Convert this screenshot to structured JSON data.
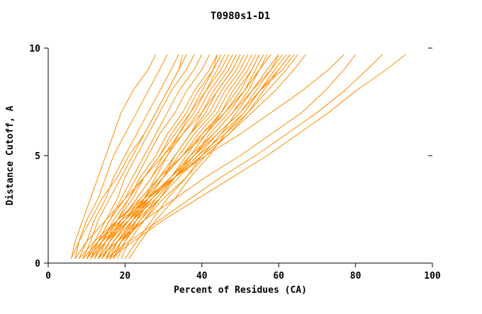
{
  "chart_data": {
    "type": "line",
    "title": "T0980s1-D1",
    "xlabel": "Percent of Residues (CA)",
    "ylabel": "Distance Cutoff, A",
    "xlim": [
      0,
      100
    ],
    "ylim": [
      0,
      10
    ],
    "x_ticks": [
      0,
      20,
      40,
      60,
      80,
      100
    ],
    "y_ticks": [
      0,
      5,
      10
    ],
    "grid": false,
    "legend_position": "none",
    "line_color": "#ff8c00",
    "y_levels": [
      0.2,
      1,
      2,
      3,
      4,
      5,
      6,
      7,
      8,
      9,
      9.7
    ],
    "series": [
      [
        6,
        7,
        9,
        11,
        13,
        15,
        17,
        19,
        22,
        26,
        28
      ],
      [
        7,
        8,
        10,
        13,
        15,
        17,
        20,
        23,
        26,
        29,
        31
      ],
      [
        8,
        10,
        12,
        15,
        17,
        20,
        23,
        26,
        29,
        32,
        34
      ],
      [
        9,
        11,
        13,
        16,
        19,
        22,
        25,
        28,
        31,
        34,
        36
      ],
      [
        10,
        12,
        15,
        18,
        20,
        23,
        26,
        29,
        32,
        36,
        38
      ],
      [
        10,
        13,
        16,
        19,
        22,
        25,
        28,
        31,
        34,
        38,
        40
      ],
      [
        11,
        13,
        16,
        20,
        23,
        26,
        29,
        33,
        36,
        40,
        42
      ],
      [
        11,
        14,
        17,
        21,
        24,
        28,
        31,
        35,
        38,
        42,
        44
      ],
      [
        12,
        15,
        18,
        22,
        25,
        29,
        32,
        36,
        39,
        43,
        45
      ],
      [
        12,
        14,
        18,
        21,
        25,
        29,
        33,
        37,
        41,
        44,
        46
      ],
      [
        13,
        16,
        19,
        23,
        27,
        30,
        34,
        38,
        41,
        45,
        47
      ],
      [
        13,
        15,
        19,
        23,
        27,
        31,
        35,
        39,
        42,
        46,
        48
      ],
      [
        14,
        17,
        21,
        25,
        29,
        33,
        37,
        41,
        44,
        48,
        50
      ],
      [
        14,
        16,
        20,
        24,
        29,
        33,
        37,
        42,
        45,
        49,
        51
      ],
      [
        15,
        18,
        22,
        26,
        30,
        34,
        38,
        43,
        46,
        50,
        52
      ],
      [
        15,
        17,
        21,
        26,
        30,
        35,
        39,
        44,
        47,
        51,
        53
      ],
      [
        16,
        19,
        23,
        27,
        32,
        36,
        40,
        45,
        48,
        52,
        54
      ],
      [
        16,
        18,
        22,
        27,
        32,
        37,
        41,
        46,
        50,
        53,
        55
      ],
      [
        17,
        20,
        24,
        29,
        33,
        38,
        42,
        47,
        51,
        54,
        56
      ],
      [
        17,
        19,
        24,
        28,
        33,
        38,
        43,
        48,
        52,
        55,
        57
      ],
      [
        12,
        15,
        20,
        25,
        30,
        35,
        41,
        46,
        51,
        55,
        58
      ],
      [
        13,
        16,
        21,
        26,
        32,
        37,
        43,
        48,
        53,
        57,
        60
      ],
      [
        14,
        17,
        22,
        28,
        33,
        39,
        44,
        50,
        54,
        58,
        61
      ],
      [
        15,
        18,
        23,
        29,
        34,
        40,
        45,
        51,
        55,
        59,
        62
      ],
      [
        16,
        19,
        25,
        30,
        36,
        41,
        47,
        52,
        56,
        60,
        63
      ],
      [
        10,
        14,
        20,
        26,
        32,
        38,
        44,
        50,
        55,
        61,
        64
      ],
      [
        11,
        15,
        21,
        27,
        33,
        39,
        46,
        52,
        57,
        62,
        65
      ],
      [
        9,
        13,
        19,
        26,
        33,
        40,
        47,
        53,
        59,
        64,
        67
      ],
      [
        8,
        12,
        18,
        25,
        33,
        41,
        50,
        58,
        66,
        73,
        77
      ],
      [
        13,
        18,
        25,
        33,
        41,
        50,
        58,
        66,
        72,
        77,
        80
      ],
      [
        15,
        21,
        29,
        37,
        45,
        54,
        62,
        70,
        77,
        83,
        87
      ],
      [
        16,
        22,
        30,
        39,
        48,
        57,
        65,
        73,
        80,
        88,
        93
      ],
      [
        6,
        8,
        11,
        14,
        18,
        21,
        25,
        28,
        31,
        34,
        35
      ],
      [
        20,
        23,
        27,
        31,
        36,
        40,
        45,
        49,
        53,
        58,
        60
      ],
      [
        18,
        20,
        23,
        26,
        30,
        33,
        37,
        40,
        43,
        47,
        49
      ],
      [
        19,
        21,
        25,
        29,
        33,
        37,
        41,
        45,
        49,
        53,
        55
      ],
      [
        7,
        10,
        15,
        20,
        25,
        30,
        35,
        40,
        44,
        48,
        50
      ],
      [
        9,
        13,
        18,
        24,
        29,
        35,
        40,
        46,
        51,
        55,
        58
      ],
      [
        17,
        19,
        22,
        25,
        28,
        31,
        34,
        37,
        40,
        43,
        44
      ],
      [
        21,
        24,
        28,
        33,
        37,
        42,
        46,
        51,
        55,
        60,
        63
      ]
    ]
  }
}
